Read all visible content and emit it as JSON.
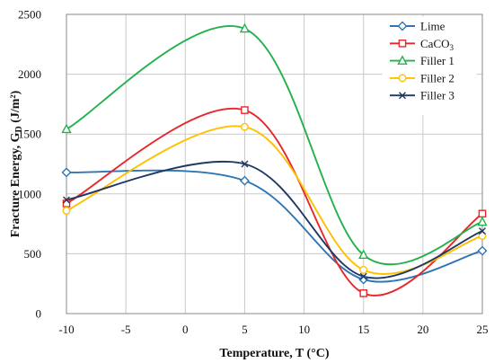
{
  "chart_data": {
    "type": "line",
    "xlabel": "Temperature, T (°C)",
    "ylabel": "Fracture Energy, G_D (J/m²)",
    "ylabel_parts": {
      "pre": "Fracture Energy, G",
      "sub": "D",
      "post": " (J/m²)"
    },
    "xlim": [
      -10,
      25
    ],
    "ylim": [
      0,
      2500
    ],
    "x_ticks": [
      -10,
      -5,
      0,
      5,
      10,
      15,
      20,
      25
    ],
    "y_ticks": [
      0,
      500,
      1000,
      1500,
      2000,
      2500
    ],
    "grid": true,
    "legend_position": "top-right",
    "x": [
      -10,
      5,
      15,
      25
    ],
    "series": [
      {
        "name": "Lime",
        "name_parts": {
          "pre": "Lime",
          "sub": ""
        },
        "color": "#2e75b6",
        "marker": "diamond",
        "values": [
          1180,
          1110,
          285,
          525
        ]
      },
      {
        "name": "CaCO3",
        "name_parts": {
          "pre": "CaCO",
          "sub": "3"
        },
        "color": "#e8272a",
        "marker": "square",
        "values": [
          920,
          1700,
          170,
          835
        ]
      },
      {
        "name": "Filler 1",
        "name_parts": {
          "pre": "Filler 1",
          "sub": ""
        },
        "color": "#22b14c",
        "marker": "triangle",
        "values": [
          1540,
          2380,
          490,
          765
        ]
      },
      {
        "name": "Filler 2",
        "name_parts": {
          "pre": "Filler 2",
          "sub": ""
        },
        "color": "#ffc000",
        "marker": "circle",
        "values": [
          860,
          1560,
          365,
          650
        ]
      },
      {
        "name": "Filler 3",
        "name_parts": {
          "pre": "Filler 3",
          "sub": ""
        },
        "color": "#1f3864",
        "marker": "x",
        "values": [
          950,
          1250,
          310,
          690
        ]
      }
    ]
  }
}
